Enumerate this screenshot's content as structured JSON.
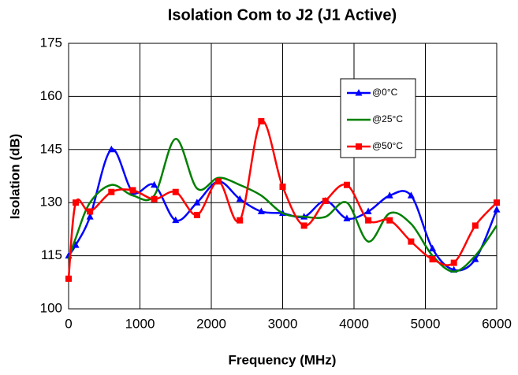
{
  "chart_data": {
    "type": "line",
    "title": "Isolation Com to J2 (J1 Active)",
    "x_label": "Frequency (MHz)",
    "y_label": "Isolation (dB)",
    "x": [
      0,
      100,
      300,
      600,
      900,
      1200,
      1500,
      1800,
      2100,
      2400,
      2700,
      3000,
      3300,
      3600,
      3900,
      4200,
      4500,
      4800,
      5100,
      5400,
      5700,
      6000
    ],
    "series": [
      {
        "name": "@0°C",
        "color": "#0000ff",
        "marker": "triangle",
        "values": [
          115,
          118,
          126,
          145,
          133,
          135,
          125,
          130,
          136,
          131,
          127.5,
          127,
          126,
          130.5,
          125.5,
          127.5,
          132,
          132,
          117,
          111,
          114,
          128
        ]
      },
      {
        "name": "@25°C",
        "color": "#008000",
        "marker": "none",
        "values": [
          114,
          120,
          130,
          135,
          132,
          132,
          148,
          134,
          137,
          135,
          132,
          127,
          126,
          126,
          130,
          119,
          127,
          124,
          115,
          110.5,
          115,
          123.5
        ]
      },
      {
        "name": "@50°C",
        "color": "#ff0000",
        "marker": "square",
        "values": [
          108.5,
          130,
          127.5,
          133,
          133.5,
          131,
          133,
          126.5,
          136,
          125,
          153,
          134.5,
          123.5,
          130.5,
          135,
          125,
          125,
          119,
          114,
          113,
          123.5,
          130
        ]
      }
    ],
    "xlim": [
      0,
      6000
    ],
    "xticks": [
      0,
      1000,
      2000,
      3000,
      4000,
      5000,
      6000
    ],
    "ylim": [
      100,
      175
    ],
    "yticks": [
      100,
      115,
      130,
      145,
      160,
      175
    ],
    "grid": true,
    "smooth": true
  }
}
